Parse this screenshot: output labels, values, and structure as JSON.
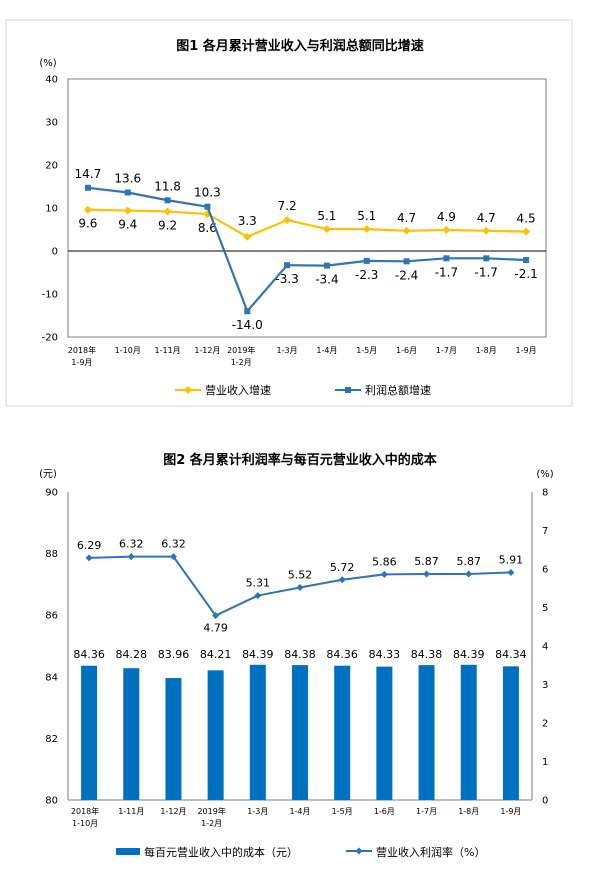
{
  "chart_data": [
    {
      "type": "line",
      "title": "图1 各月累计营业收入与利润总额同比增速",
      "yunit": "(%)",
      "ylim": [
        -20,
        40
      ],
      "yticks": [
        40,
        30,
        20,
        10,
        0,
        -10,
        -20
      ],
      "grid": false,
      "legend_position": "bottom",
      "categories": [
        [
          "2018年",
          "1-9月"
        ],
        [
          "1-10月"
        ],
        [
          "1-11月"
        ],
        [
          "1-12月"
        ],
        [
          "2019年",
          "1-2月"
        ],
        [
          "1-3月"
        ],
        [
          "1-4月"
        ],
        [
          "1-5月"
        ],
        [
          "1-6月"
        ],
        [
          "1-7月"
        ],
        [
          "1-8月"
        ],
        [
          "1-9月"
        ]
      ],
      "series": [
        {
          "name": "营业收入增速",
          "color": "#FFC000",
          "marker": "diamond",
          "values": [
            9.6,
            9.4,
            9.2,
            8.6,
            3.3,
            7.2,
            5.1,
            5.1,
            4.7,
            4.9,
            4.7,
            4.5
          ],
          "labels": [
            "9.6",
            "9.4",
            "9.2",
            "8.6",
            "3.3",
            "7.2",
            "5.1",
            "5.1",
            "4.7",
            "4.9",
            "4.7",
            "4.5"
          ]
        },
        {
          "name": "利润总额增速",
          "color": "#2E75B6",
          "marker": "square",
          "values": [
            14.7,
            13.6,
            11.8,
            10.3,
            -14.0,
            -3.3,
            -3.4,
            -2.3,
            -2.4,
            -1.7,
            -1.7,
            -2.1
          ],
          "labels": [
            "14.7",
            "13.6",
            "11.8",
            "10.3",
            "-14.0",
            "-3.3",
            "-3.4",
            "-2.3",
            "-2.4",
            "-1.7",
            "-1.7",
            "-2.1"
          ]
        }
      ]
    },
    {
      "type": "bar+line",
      "title": "图2 各月累计利润率与每百元营业收入中的成本",
      "y_left_unit": "(元)",
      "y_right_unit": "(%)",
      "ylim_left": [
        80,
        90
      ],
      "yticks_left": [
        90,
        88,
        86,
        84,
        82,
        80
      ],
      "ylim_right": [
        0,
        8
      ],
      "yticks_right": [
        8,
        7,
        6,
        5,
        4,
        3,
        2,
        1,
        0
      ],
      "grid": false,
      "legend_position": "bottom",
      "categories": [
        [
          "2018年",
          "1-10月"
        ],
        [
          "1-11月"
        ],
        [
          "1-12月"
        ],
        [
          "2019年",
          "1-2月"
        ],
        [
          "1-3月"
        ],
        [
          "1-4月"
        ],
        [
          "1-5月"
        ],
        [
          "1-6月"
        ],
        [
          "1-7月"
        ],
        [
          "1-8月"
        ],
        [
          "1-9月"
        ]
      ],
      "bar_series": {
        "name": "每百元营业收入中的成本（元）",
        "color": "#0070C0",
        "values": [
          84.36,
          84.28,
          83.96,
          84.21,
          84.39,
          84.38,
          84.36,
          84.33,
          84.38,
          84.39,
          84.34
        ],
        "labels": [
          "84.36",
          "84.28",
          "83.96",
          "84.21",
          "84.39",
          "84.38",
          "84.36",
          "84.33",
          "84.38",
          "84.39",
          "84.34"
        ]
      },
      "line_series": {
        "name": "营业收入利润率（%）",
        "color": "#2E75B6",
        "marker": "diamond",
        "values": [
          6.29,
          6.32,
          6.32,
          4.79,
          5.31,
          5.52,
          5.72,
          5.86,
          5.87,
          5.87,
          5.91
        ],
        "labels": [
          "6.29",
          "6.32",
          "6.32",
          "4.79",
          "5.31",
          "5.52",
          "5.72",
          "5.86",
          "5.87",
          "5.87",
          "5.91"
        ]
      }
    }
  ]
}
